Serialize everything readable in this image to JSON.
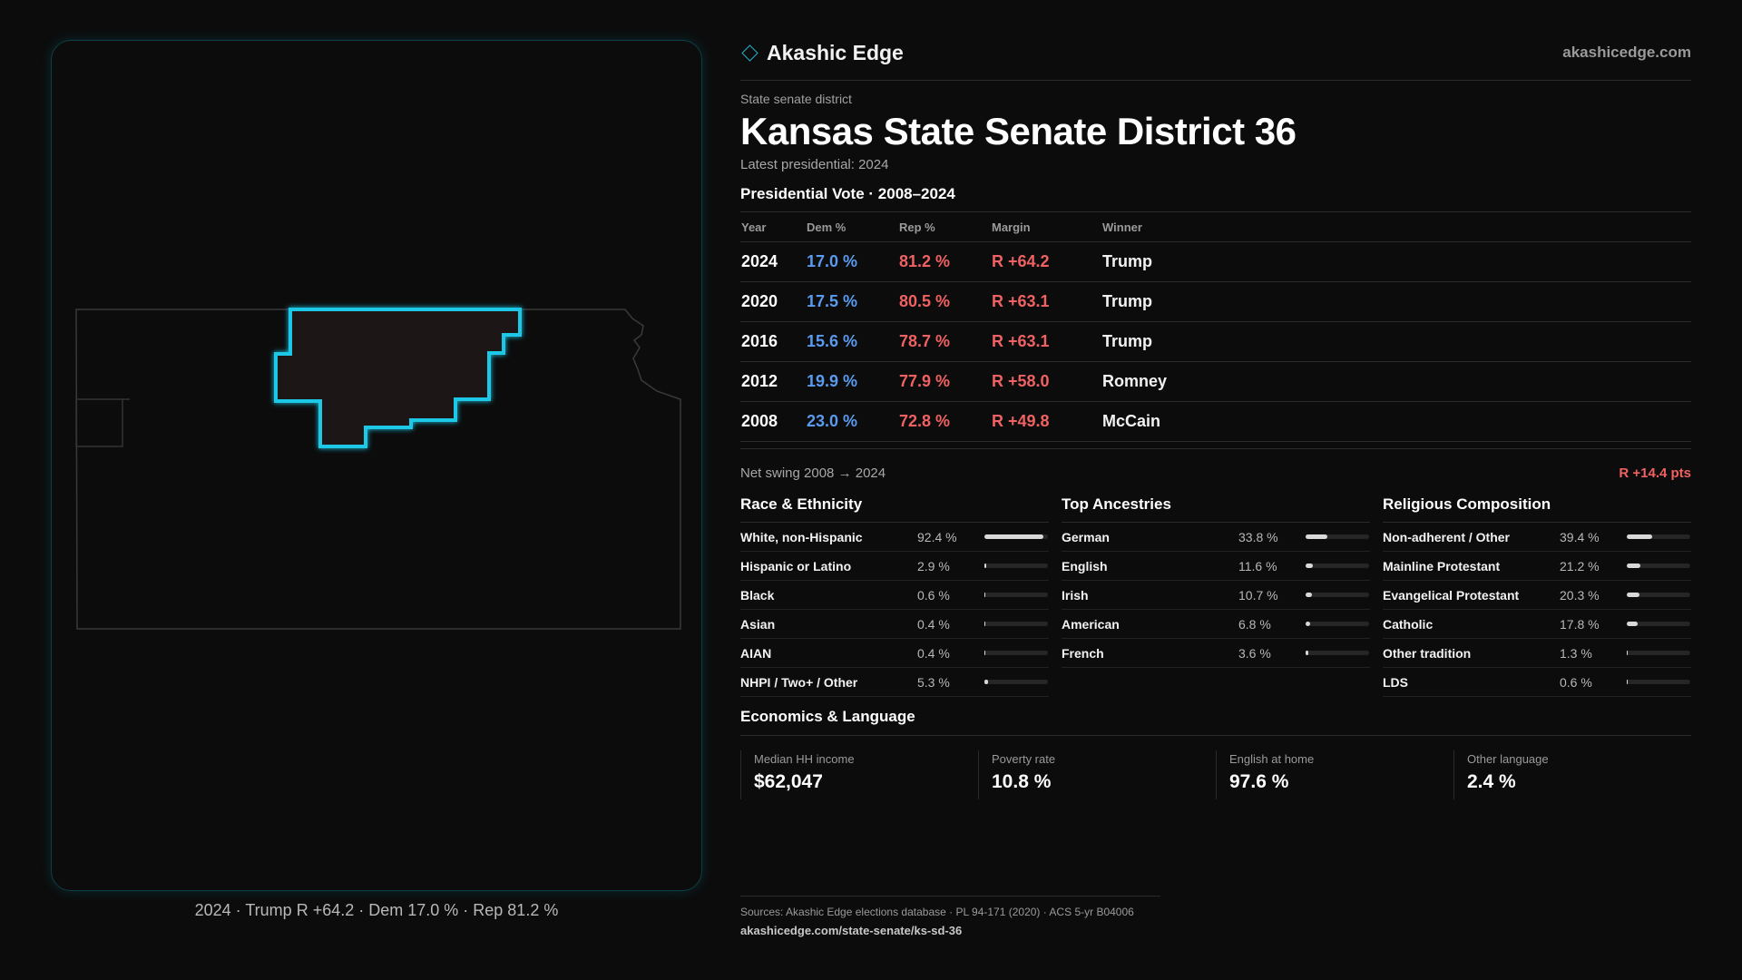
{
  "brand": {
    "name": "Akashic Edge",
    "site": "akashicedge.com"
  },
  "kicker": "State senate district",
  "title": "Kansas State Senate District 36",
  "latest": "Latest presidential: 2024",
  "presidential": {
    "heading": "Presidential Vote · 2008–2024",
    "columns": [
      "Year",
      "Dem %",
      "Rep %",
      "Margin",
      "Winner"
    ],
    "rows": [
      {
        "year": "2024",
        "dem": "17.0 %",
        "rep": "81.2 %",
        "margin": "R +64.2",
        "winner": "Trump"
      },
      {
        "year": "2020",
        "dem": "17.5 %",
        "rep": "80.5 %",
        "margin": "R +63.1",
        "winner": "Trump"
      },
      {
        "year": "2016",
        "dem": "15.6 %",
        "rep": "78.7 %",
        "margin": "R +63.1",
        "winner": "Trump"
      },
      {
        "year": "2012",
        "dem": "19.9 %",
        "rep": "77.9 %",
        "margin": "R +58.0",
        "winner": "Romney"
      },
      {
        "year": "2008",
        "dem": "23.0 %",
        "rep": "72.8 %",
        "margin": "R +49.8",
        "winner": "McCain"
      }
    ]
  },
  "swing": {
    "label": "Net swing 2008 → 2024",
    "value": "R +14.4 pts"
  },
  "race": {
    "heading": "Race & Ethnicity",
    "items": [
      {
        "name": "White, non-Hispanic",
        "pct": "92.4 %",
        "share": 0.924
      },
      {
        "name": "Hispanic or Latino",
        "pct": "2.9 %",
        "share": 0.029
      },
      {
        "name": "Black",
        "pct": "0.6 %",
        "share": 0.006
      },
      {
        "name": "Asian",
        "pct": "0.4 %",
        "share": 0.004
      },
      {
        "name": "AIAN",
        "pct": "0.4 %",
        "share": 0.004
      },
      {
        "name": "NHPI / Two+ / Other",
        "pct": "5.3 %",
        "share": 0.053
      }
    ]
  },
  "ancestry": {
    "heading": "Top Ancestries",
    "items": [
      {
        "name": "German",
        "pct": "33.8 %",
        "share": 0.338
      },
      {
        "name": "English",
        "pct": "11.6 %",
        "share": 0.116
      },
      {
        "name": "Irish",
        "pct": "10.7 %",
        "share": 0.107
      },
      {
        "name": "American",
        "pct": "6.8 %",
        "share": 0.068
      },
      {
        "name": "French",
        "pct": "3.6 %",
        "share": 0.036
      }
    ]
  },
  "religion": {
    "heading": "Religious Composition",
    "items": [
      {
        "name": "Non-adherent / Other",
        "pct": "39.4 %",
        "share": 0.394
      },
      {
        "name": "Mainline Protestant",
        "pct": "21.2 %",
        "share": 0.212
      },
      {
        "name": "Evangelical Protestant",
        "pct": "20.3 %",
        "share": 0.203
      },
      {
        "name": "Catholic",
        "pct": "17.8 %",
        "share": 0.178
      },
      {
        "name": "Other tradition",
        "pct": "1.3 %",
        "share": 0.013
      },
      {
        "name": "LDS",
        "pct": "0.6 %",
        "share": 0.006
      }
    ]
  },
  "economics": {
    "heading": "Economics & Language",
    "items": [
      {
        "label": "Median HH income",
        "value": "$62,047"
      },
      {
        "label": "Poverty rate",
        "value": "10.8 %"
      },
      {
        "label": "English at home",
        "value": "97.6 %"
      },
      {
        "label": "Other language",
        "value": "2.4 %"
      }
    ]
  },
  "map_caption": "2024 · Trump R +64.2 · Dem 17.0 % · Rep 81.2 %",
  "sources": {
    "line1": "Sources: Akashic Edge elections database · PL 94-171 (2020) · ACS 5-yr B04006",
    "line2": "akashicedge.com/state-senate/ks-sd-36"
  },
  "colors": {
    "dem": "#5a9bef",
    "rep": "#f06262",
    "district_outline": "#1ec8e6",
    "district_fill": "#1f1213"
  }
}
